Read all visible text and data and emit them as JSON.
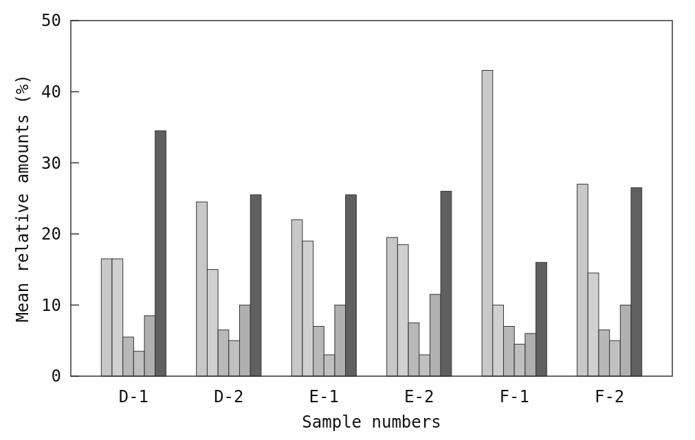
{
  "chart_data": {
    "type": "bar",
    "xlabel": "Sample numbers",
    "ylabel": "Mean relative amounts (%)",
    "categories": [
      "D-1",
      "D-2",
      "E-1",
      "E-2",
      "F-1",
      "F-2"
    ],
    "series": [
      {
        "color": "#c8c8c8",
        "values": [
          16.5,
          24.5,
          22,
          19.5,
          43,
          27
        ]
      },
      {
        "color": "#d0d0d0",
        "values": [
          16.5,
          15,
          19,
          18.5,
          10,
          14.5
        ]
      },
      {
        "color": "#b8b8b8",
        "values": [
          5.5,
          6.5,
          7,
          7.5,
          7,
          6.5
        ]
      },
      {
        "color": "#c0c0c0",
        "values": [
          3.5,
          5,
          3,
          3,
          4.5,
          5
        ]
      },
      {
        "color": "#b0b0b0",
        "values": [
          8.5,
          10,
          10,
          11.5,
          6,
          10
        ]
      },
      {
        "color": "#606060",
        "values": [
          34.5,
          25.5,
          25.5,
          26,
          16,
          26.5
        ]
      }
    ],
    "ylim": [
      0,
      50
    ],
    "yticks": [
      0,
      10,
      20,
      30,
      40,
      50
    ],
    "grid": false
  }
}
